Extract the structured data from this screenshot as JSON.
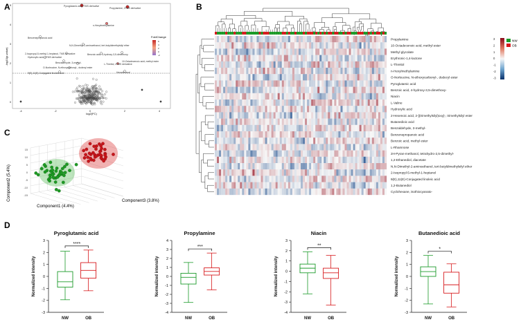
{
  "panels": {
    "a": "A",
    "b": "B",
    "c": "C",
    "d": "D"
  },
  "volcano": {
    "xlabel": "log2(FC)",
    "ylabel": "-log10(p-value)",
    "legend_title": "FoldChange",
    "legend_ticks": [
      "6",
      "4",
      "2",
      "0",
      "-2"
    ],
    "yticks": [
      "0",
      "1",
      "2",
      "3",
      "4",
      "5"
    ],
    "xticks": [
      "-4",
      "-2",
      "0",
      "2",
      "4"
    ],
    "labels": [
      "Pyroglutamic acid, TMS derivative",
      "Propylamine, 2TMS derivative",
      "n-Hexylmethylamine",
      "Benzenepropanoic acid",
      "N,N-Dimethyl-2-aminoethanol, tert-butyldimethylsilyl ether",
      "2-Isopropyl-5-methyl-1-heptanol, TMS derivative",
      "Benzoic acid, 4-hydroxy-3,5-dimethoxy-",
      "Hydroxylic acid, 2TMS derivative",
      "L-Threitol, 4TMS derivative",
      "10-Octadecenoic acid, methyl ester",
      "Benzaldehyde, 3-methyl-",
      "O-Norleucine, N-ethoxycarbonyl-, dodecyl ester",
      "Hexadecanal",
      "9(E),11(E)-Conjugated linoleic acid"
    ]
  },
  "heatmap": {
    "rows": [
      "Propylamine",
      "10-Octadecenoic acid, methyl ester",
      "Methyl glycolate",
      "Erythronic-1,4-lactone",
      "L-Threitol",
      "n-Hexylmethylamine",
      "O-Norleucine, N-ethoxycarbonyl-, dodecyl ester",
      "Pyroglutamic acid",
      "Benzoic acid, 4-hydroxy-3,5-dimethoxy-",
      "Niacin",
      "L-Valine",
      "Hydroxylic acid",
      "2-Hexenoic acid, 2-[(trimethylsilyl)oxy]-, trimethylsilyl ester",
      "Butanedioic acid",
      "Benzaldehyde, 3-methyl-",
      "Benzenepropanoic acid",
      "Benzoic acid, methyl ester",
      "L-Rhamnose",
      "2H-Pyran-methanol, tetrahydro-2,5-dimethyl-",
      "1,2-Ethanediol, diacetate",
      "N,N-Dimethyl-2-aminoethanol, tert-butyldimethylsilyl ether",
      "2-Isopropyl-5-methyl-1-heptanol",
      "9(E),11(E)-Conjugated linoleic acid",
      "1,2-Butanediol",
      "Cyclohexane, isothiocyanato-"
    ],
    "scale_ticks": [
      "3",
      "2",
      "1",
      "0",
      "-1",
      "-2",
      "-3"
    ],
    "groups": [
      "NW",
      "OB"
    ],
    "group_colors": [
      "#1a9a28",
      "#d7191c"
    ]
  },
  "pca": {
    "xlabel": "Component1 (4.4%)",
    "ylabel": "Component2 (5.4%)",
    "zlabel": "Component3 (3.8%)",
    "yticks": [
      "15",
      "10",
      "5",
      "0",
      "-5",
      "-10",
      "-15"
    ]
  },
  "chart_data": [
    {
      "type": "box",
      "title": "Pyroglutamic acid",
      "categories": [
        "NW",
        "OB"
      ],
      "ylabel": "Normalized intensity",
      "ylim": [
        -3,
        3
      ],
      "yticks": [
        -3,
        -2,
        -1,
        0,
        1,
        2,
        3
      ],
      "boxes": [
        {
          "group": "NW",
          "min": -1.95,
          "q1": -0.9,
          "median": -0.45,
          "q3": 0.4,
          "max": 2.1
        },
        {
          "group": "OB",
          "min": -1.2,
          "q1": -0.15,
          "median": 0.5,
          "q3": 1.15,
          "max": 2.2
        }
      ],
      "significance": "****"
    },
    {
      "type": "box",
      "title": "Propylamine",
      "categories": [
        "NW",
        "OB"
      ],
      "ylabel": "Normalized intensity",
      "ylim": [
        -4,
        4
      ],
      "yticks": [
        -4,
        -3,
        -2,
        -1,
        0,
        1,
        2,
        3,
        4
      ],
      "boxes": [
        {
          "group": "NW",
          "min": -2.9,
          "q1": -0.85,
          "median": -0.1,
          "q3": 0.35,
          "max": 1.55
        },
        {
          "group": "OB",
          "min": -1.5,
          "q1": 0.15,
          "median": 0.55,
          "q3": 0.95,
          "max": 2.6
        }
      ],
      "significance": "***"
    },
    {
      "type": "box",
      "title": "Niacin",
      "categories": [
        "NW",
        "OB"
      ],
      "ylabel": "Normalized intensity",
      "ylim": [
        -4,
        3
      ],
      "yticks": [
        -4,
        -3,
        -2,
        -1,
        0,
        1,
        2,
        3
      ],
      "boxes": [
        {
          "group": "NW",
          "min": -2.2,
          "q1": -0.15,
          "median": 0.3,
          "q3": 0.7,
          "max": 1.9
        },
        {
          "group": "OB",
          "min": -3.3,
          "q1": -0.7,
          "median": -0.15,
          "q3": 0.3,
          "max": 1.55
        }
      ],
      "significance": "**"
    },
    {
      "type": "box",
      "title": "Butanedioic acid",
      "categories": [
        "NW",
        "OB"
      ],
      "ylabel": "Normalized intensity",
      "ylim": [
        -3,
        3
      ],
      "yticks": [
        -3,
        -2,
        -1,
        0,
        1,
        2,
        3
      ],
      "boxes": [
        {
          "group": "NW",
          "min": -2.3,
          "q1": 0.0,
          "median": 0.4,
          "q3": 0.8,
          "max": 1.75
        },
        {
          "group": "OB",
          "min": -2.55,
          "q1": -1.4,
          "median": -0.7,
          "q3": 0.35,
          "max": 1.05
        }
      ],
      "significance": "*"
    }
  ]
}
